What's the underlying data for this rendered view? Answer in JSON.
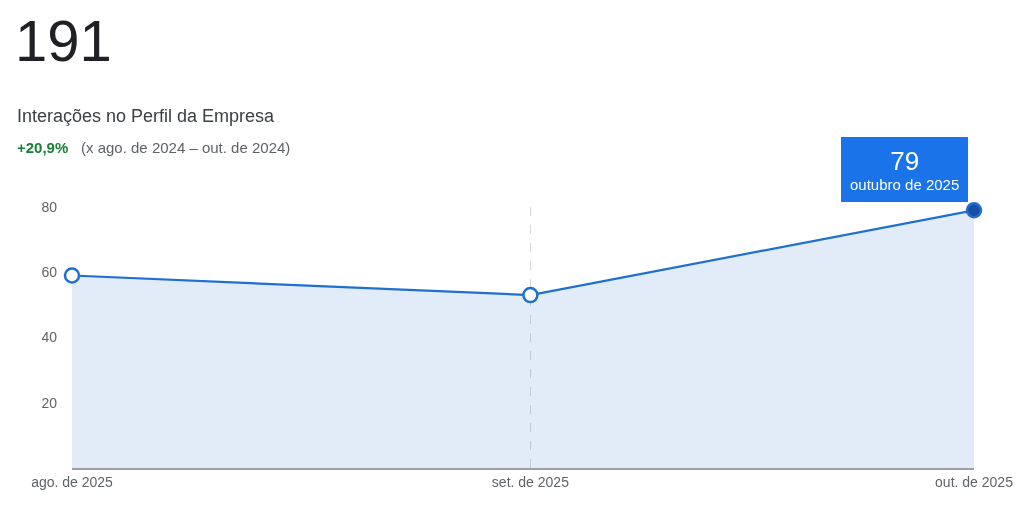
{
  "chart_data": {
    "type": "area",
    "title": "191",
    "subtitle": "Interações no Perfil da Empresa",
    "annotations": [
      "+20,9%",
      "(x ago. de 2024 – out. de 2024)",
      {
        "text": "79\noutubro de 2025",
        "x": "2025-10",
        "y": 79
      }
    ],
    "x": [
      "2025-08",
      "2025-09",
      "2025-10"
    ],
    "series": [
      {
        "color": "#1f6fd1",
        "colors": [
          "#ffffff",
          "#ffffff",
          "#174ea6"
        ],
        "values": [
          59,
          53,
          79
        ]
      }
    ],
    "xlim": [
      "2025-08",
      "2025-10"
    ],
    "xticks": [
      {
        "value": "2025-08",
        "label": "ago. de 2025"
      },
      {
        "value": "2025-09",
        "label": "set. de 2025"
      },
      {
        "value": "2025-10",
        "label": "out. de 2025"
      }
    ],
    "ylim": [
      0,
      80
    ],
    "yticks": [
      20,
      40,
      60,
      80
    ],
    "grid": "x",
    "marker": "circle"
  }
}
